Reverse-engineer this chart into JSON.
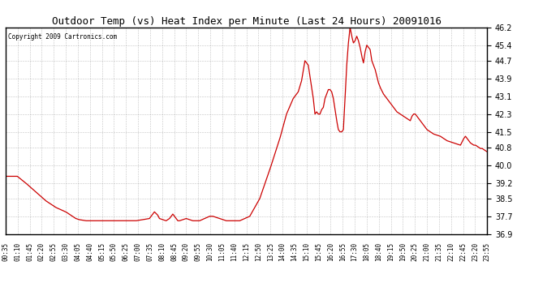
{
  "title": "Outdoor Temp (vs) Heat Index per Minute (Last 24 Hours) 20091016",
  "copyright": "Copyright 2009 Cartronics.com",
  "line_color": "#cc0000",
  "bg_color": "#ffffff",
  "grid_color": "#999999",
  "y_min": 36.9,
  "y_max": 46.2,
  "y_ticks": [
    36.9,
    37.7,
    38.5,
    39.2,
    40.0,
    40.8,
    41.5,
    42.3,
    43.1,
    43.9,
    44.7,
    45.4,
    46.2
  ],
  "x_tick_labels": [
    "00:35",
    "01:10",
    "01:45",
    "02:20",
    "02:55",
    "03:30",
    "04:05",
    "04:40",
    "05:15",
    "05:50",
    "06:25",
    "07:00",
    "07:35",
    "08:10",
    "08:45",
    "09:20",
    "09:55",
    "10:30",
    "11:05",
    "11:40",
    "12:15",
    "12:50",
    "13:25",
    "14:00",
    "14:35",
    "15:10",
    "15:45",
    "16:20",
    "16:55",
    "17:30",
    "18:05",
    "18:40",
    "19:15",
    "19:50",
    "20:25",
    "21:00",
    "21:35",
    "22:10",
    "22:45",
    "23:20",
    "23:55"
  ],
  "key_points": [
    [
      0,
      39.5
    ],
    [
      35,
      39.5
    ],
    [
      60,
      39.2
    ],
    [
      90,
      38.8
    ],
    [
      120,
      38.4
    ],
    [
      150,
      38.1
    ],
    [
      180,
      37.9
    ],
    [
      200,
      37.7
    ],
    [
      210,
      37.6
    ],
    [
      220,
      37.55
    ],
    [
      240,
      37.5
    ],
    [
      390,
      37.5
    ],
    [
      430,
      37.6
    ],
    [
      445,
      37.9
    ],
    [
      455,
      37.75
    ],
    [
      460,
      37.6
    ],
    [
      470,
      37.55
    ],
    [
      480,
      37.5
    ],
    [
      490,
      37.6
    ],
    [
      500,
      37.8
    ],
    [
      510,
      37.6
    ],
    [
      515,
      37.5
    ],
    [
      520,
      37.5
    ],
    [
      530,
      37.55
    ],
    [
      540,
      37.6
    ],
    [
      550,
      37.55
    ],
    [
      560,
      37.5
    ],
    [
      580,
      37.5
    ],
    [
      595,
      37.6
    ],
    [
      610,
      37.7
    ],
    [
      620,
      37.7
    ],
    [
      640,
      37.6
    ],
    [
      650,
      37.55
    ],
    [
      660,
      37.5
    ],
    [
      700,
      37.5
    ],
    [
      730,
      37.7
    ],
    [
      760,
      38.5
    ],
    [
      790,
      39.8
    ],
    [
      820,
      41.2
    ],
    [
      840,
      42.3
    ],
    [
      860,
      43.0
    ],
    [
      875,
      43.3
    ],
    [
      885,
      43.8
    ],
    [
      895,
      44.7
    ],
    [
      905,
      44.5
    ],
    [
      910,
      44.0
    ],
    [
      915,
      43.5
    ],
    [
      920,
      43.0
    ],
    [
      925,
      42.3
    ],
    [
      930,
      42.4
    ],
    [
      935,
      42.3
    ],
    [
      940,
      42.3
    ],
    [
      945,
      42.5
    ],
    [
      950,
      42.6
    ],
    [
      955,
      43.0
    ],
    [
      960,
      43.2
    ],
    [
      965,
      43.4
    ],
    [
      970,
      43.4
    ],
    [
      975,
      43.3
    ],
    [
      980,
      43.0
    ],
    [
      985,
      42.5
    ],
    [
      990,
      42.0
    ],
    [
      995,
      41.6
    ],
    [
      1000,
      41.5
    ],
    [
      1005,
      41.5
    ],
    [
      1010,
      41.6
    ],
    [
      1015,
      43.0
    ],
    [
      1020,
      44.5
    ],
    [
      1025,
      45.5
    ],
    [
      1030,
      46.2
    ],
    [
      1035,
      45.8
    ],
    [
      1040,
      45.5
    ],
    [
      1045,
      45.6
    ],
    [
      1050,
      45.8
    ],
    [
      1055,
      45.6
    ],
    [
      1060,
      45.3
    ],
    [
      1065,
      44.9
    ],
    [
      1070,
      44.6
    ],
    [
      1075,
      45.1
    ],
    [
      1080,
      45.4
    ],
    [
      1085,
      45.3
    ],
    [
      1090,
      45.2
    ],
    [
      1095,
      44.7
    ],
    [
      1100,
      44.5
    ],
    [
      1105,
      44.3
    ],
    [
      1110,
      44.0
    ],
    [
      1115,
      43.7
    ],
    [
      1120,
      43.5
    ],
    [
      1130,
      43.2
    ],
    [
      1140,
      43.0
    ],
    [
      1150,
      42.8
    ],
    [
      1160,
      42.6
    ],
    [
      1170,
      42.4
    ],
    [
      1180,
      42.3
    ],
    [
      1190,
      42.2
    ],
    [
      1200,
      42.1
    ],
    [
      1210,
      42.0
    ],
    [
      1215,
      42.2
    ],
    [
      1220,
      42.3
    ],
    [
      1225,
      42.3
    ],
    [
      1230,
      42.2
    ],
    [
      1235,
      42.1
    ],
    [
      1240,
      42.0
    ],
    [
      1245,
      41.9
    ],
    [
      1250,
      41.8
    ],
    [
      1255,
      41.7
    ],
    [
      1260,
      41.6
    ],
    [
      1265,
      41.55
    ],
    [
      1270,
      41.5
    ],
    [
      1280,
      41.4
    ],
    [
      1290,
      41.35
    ],
    [
      1300,
      41.3
    ],
    [
      1310,
      41.2
    ],
    [
      1320,
      41.1
    ],
    [
      1330,
      41.05
    ],
    [
      1340,
      41.0
    ],
    [
      1350,
      40.95
    ],
    [
      1360,
      40.9
    ],
    [
      1365,
      41.05
    ],
    [
      1370,
      41.2
    ],
    [
      1375,
      41.3
    ],
    [
      1380,
      41.2
    ],
    [
      1385,
      41.1
    ],
    [
      1390,
      41.0
    ],
    [
      1395,
      40.95
    ],
    [
      1400,
      40.9
    ],
    [
      1405,
      40.9
    ],
    [
      1410,
      40.85
    ],
    [
      1415,
      40.8
    ],
    [
      1420,
      40.75
    ],
    [
      1425,
      40.75
    ],
    [
      1430,
      40.7
    ],
    [
      1435,
      40.65
    ],
    [
      1440,
      40.6
    ]
  ]
}
